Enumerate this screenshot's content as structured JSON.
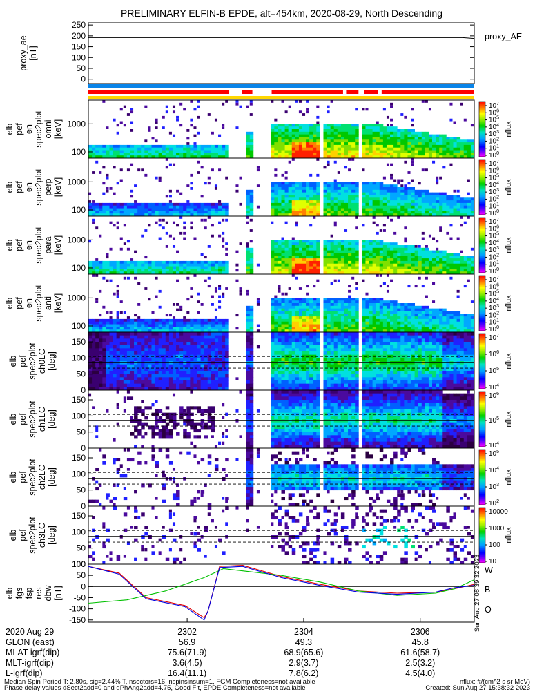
{
  "title": "PRELIMINARY ELFIN-B EPDE, alt=454km, 2020-08-29, North Descending",
  "colors": {
    "red_bar": "#ff0000",
    "blue_bar": "#0a84e8",
    "yellow_bar": "#ffd700",
    "trace_w": "#e00000",
    "trace_b": "#00c000",
    "trace_o": "#0000e0"
  },
  "panels": [
    {
      "label": [
        "proxy_ae",
        "[nT]"
      ],
      "side": "proxy_AE"
    },
    {
      "label": [
        "elb",
        "pef",
        "en",
        "spec2plot",
        "omni",
        "[keV]"
      ],
      "cb_ticks": [
        "10",
        "10",
        "10",
        "10",
        "10",
        "10",
        "10",
        "10"
      ],
      "cb_exp": [
        "7",
        "6",
        "5",
        "4",
        "3",
        "2",
        "1",
        "0"
      ],
      "unit": "nflux"
    },
    {
      "label": [
        "elb",
        "pef",
        "en",
        "spec2plot",
        "perp",
        "[keV]"
      ],
      "cb_ticks": [
        "10",
        "10",
        "10",
        "10",
        "10",
        "10",
        "10",
        "10"
      ],
      "cb_exp": [
        "7",
        "6",
        "5",
        "4",
        "3",
        "2",
        "1",
        "0"
      ],
      "unit": "nflux"
    },
    {
      "label": [
        "elb",
        "pef",
        "en",
        "spec2plot",
        "para",
        "[keV]"
      ],
      "cb_ticks": [
        "10",
        "10",
        "10",
        "10",
        "10",
        "10",
        "10",
        "10"
      ],
      "cb_exp": [
        "7",
        "6",
        "5",
        "4",
        "3",
        "2",
        "1",
        "0"
      ],
      "unit": "nflux"
    },
    {
      "label": [
        "elb",
        "pef",
        "en",
        "spec2plot",
        "anti",
        "[keV]"
      ],
      "cb_ticks": [
        "10",
        "10",
        "10",
        "10",
        "10",
        "10",
        "10",
        "10"
      ],
      "cb_exp": [
        "7",
        "6",
        "5",
        "4",
        "3",
        "2",
        "1",
        "0"
      ],
      "unit": "nflux"
    },
    {
      "label": [
        "elb",
        "pef",
        "spec2plot",
        "ch0LC",
        "[deg]"
      ],
      "cb_ticks": [
        "10",
        "10",
        "10",
        "10"
      ],
      "cb_exp": [
        "7",
        "6",
        "5",
        "4"
      ],
      "unit": "nflux"
    },
    {
      "label": [
        "elb",
        "pef",
        "spec2plot",
        "ch1LC",
        "[deg]"
      ],
      "cb_ticks": [
        "10",
        "10",
        "10"
      ],
      "cb_exp": [
        "6",
        "5",
        "4"
      ],
      "unit": "nflux"
    },
    {
      "label": [
        "elb",
        "pef",
        "spec2plot",
        "ch2LC",
        "[deg]"
      ],
      "cb_ticks": [
        "10",
        "10",
        "10",
        "10"
      ],
      "cb_exp": [
        "5",
        "4",
        "3",
        "2"
      ],
      "unit": "nflux"
    },
    {
      "label": [
        "elb",
        "pef",
        "spec2plot",
        "ch3LC",
        "[deg]"
      ],
      "cb_ticks": [
        "10000",
        "1000",
        "100",
        "10"
      ],
      "cb_exp": [
        "",
        "",
        "",
        ""
      ],
      "unit": "nflux"
    },
    {
      "label": [
        "elb",
        "fgs",
        "fsp",
        "res",
        "dbw",
        "[nT]"
      ],
      "legend": [
        "W",
        "B",
        "O"
      ],
      "side_text": "Sun Aug 27 08:39:32 2023"
    }
  ],
  "chart_data": [
    {
      "type": "line",
      "name": "proxy_ae",
      "ylabel": "proxy_ae [nT]",
      "ylim": [
        -20,
        260
      ],
      "yticks": [
        "250",
        "200",
        "150",
        "100",
        "50",
        "0"
      ],
      "x": [
        0.0,
        0.97,
        1.0
      ],
      "y": [
        192,
        192,
        188
      ]
    },
    {
      "type": "heatmap",
      "name": "energy spectrograms (omni, perp, para, anti)",
      "ylabel": "[keV]",
      "yscale": "log",
      "ylim": [
        60,
        7000
      ],
      "yticks": [
        "1000",
        "100"
      ],
      "colorbar_label": "nflux"
    },
    {
      "type": "heatmap",
      "name": "pitch-angle spectrograms (ch0LC - ch3LC)",
      "ylabel": "[deg]",
      "ylim": [
        0,
        180
      ],
      "yticks": [
        "150",
        "100",
        "50",
        "0"
      ],
      "colorbar_label": "nflux"
    },
    {
      "type": "line",
      "name": "dbw",
      "ylabel": "[nT]",
      "ylim": [
        -160,
        100
      ],
      "yticks": [
        "100",
        "50",
        "0",
        "-50",
        "-100",
        "-150"
      ],
      "series": [
        {
          "name": "W",
          "x": [
            0.0,
            0.08,
            0.15,
            0.25,
            0.3,
            0.31,
            0.34,
            0.4,
            0.5,
            0.6,
            0.65,
            0.7,
            0.8,
            0.9,
            0.95,
            1.0
          ],
          "y": [
            90,
            60,
            -50,
            -85,
            -140,
            -110,
            90,
            95,
            45,
            10,
            -5,
            -20,
            -30,
            -25,
            -10,
            10
          ]
        },
        {
          "name": "B",
          "x": [
            0.0,
            0.1,
            0.2,
            0.3,
            0.35,
            0.4,
            0.5,
            0.6,
            0.7,
            0.8,
            0.9,
            0.95,
            1.0
          ],
          "y": [
            -75,
            -60,
            -20,
            40,
            80,
            70,
            50,
            20,
            -20,
            -40,
            -30,
            -10,
            30
          ]
        },
        {
          "name": "O",
          "x": [
            0.0,
            0.08,
            0.15,
            0.25,
            0.3,
            0.31,
            0.34,
            0.4,
            0.5,
            0.6,
            0.65,
            0.7,
            0.8,
            0.9,
            0.95,
            1.0
          ],
          "y": [
            90,
            55,
            -55,
            -90,
            -150,
            -110,
            85,
            90,
            40,
            5,
            -10,
            -25,
            -35,
            -25,
            -5,
            5
          ]
        }
      ]
    }
  ],
  "xaxis": {
    "date": "2020 Aug 29",
    "ticks": [
      {
        "t": "2302",
        "glon": "56.9",
        "mlat": "75.6(71.9)",
        "mlt": "3.6(4.5)",
        "l": "16.4(11.1)"
      },
      {
        "t": "2304",
        "glon": "49.3",
        "mlat": "68.9(65.6)",
        "mlt": "2.9(3.7)",
        "l": "7.8(6.2)"
      },
      {
        "t": "2306",
        "glon": "45.8",
        "mlat": "61.6(58.7)",
        "mlt": "2.5(3.2)",
        "l": "4.5(4.0)"
      }
    ],
    "rows": [
      "GLON (east)",
      "MLAT-igrf(dip)",
      "MLT-igrf(dip)",
      "L-igrf(dip)"
    ]
  },
  "footer": {
    "line1_left": "Median Spin Period T: 2.80s, sig=2.44% T, nsectors=16, nspinsinsum=1, FGM Completeness=not available",
    "line1_right": "nflux: #/(cm^2 s sr MeV)",
    "line2_left": "Phase delay values dSect2add=0 and dPhAng2add=4.75, Good Fit, EPDE Completeness=not available",
    "line2_right": "Created: Sun Aug 27 15:38:32 2023"
  }
}
